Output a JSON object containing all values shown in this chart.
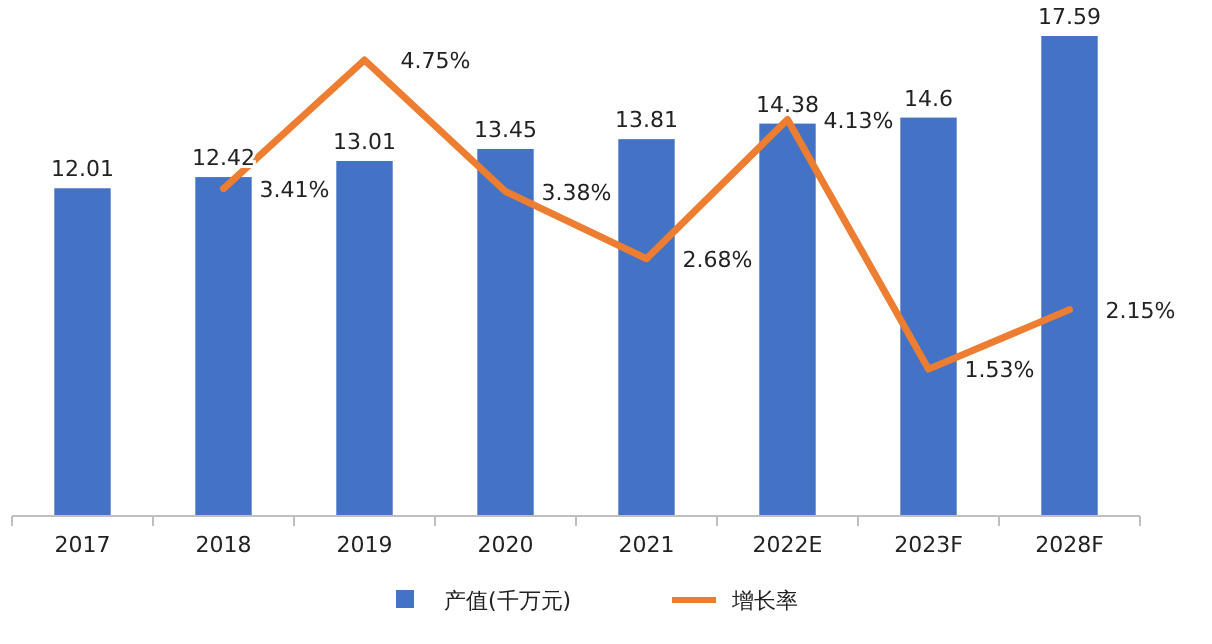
{
  "chart_data": {
    "type": "bar",
    "categories": [
      "2017",
      "2018",
      "2019",
      "2020",
      "2021",
      "2022E",
      "2023F",
      "2028F"
    ],
    "series": [
      {
        "name": "产值(千万元)",
        "color": "#4472c4",
        "values": [
          12.01,
          12.42,
          13.01,
          13.45,
          13.81,
          14.38,
          14.6,
          17.59
        ],
        "value_labels": [
          "12.01",
          "12.42",
          "13.01",
          "13.45",
          "13.81",
          "14.38",
          "14.6",
          "17.59"
        ]
      },
      {
        "name": "增长率",
        "type": "line",
        "axis": "y2",
        "color": "#ed7d31",
        "values": [
          null,
          3.41,
          4.75,
          3.38,
          2.68,
          4.13,
          1.53,
          2.15
        ],
        "value_labels": [
          null,
          "3.41%",
          "4.75%",
          "3.38%",
          "2.68%",
          "4.13%",
          "1.53%",
          "2.15%"
        ]
      }
    ],
    "legend": "bottom"
  }
}
